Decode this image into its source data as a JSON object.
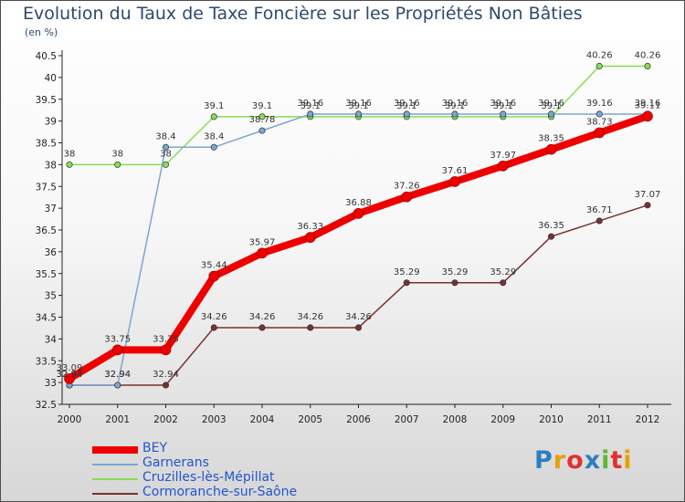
{
  "chart_data": {
    "type": "line",
    "title": "Evolution du Taux de Taxe Foncière sur les Propriétés Non Bâties",
    "subtitle": "(en %)",
    "xlabel": "",
    "ylabel": "",
    "ylim": [
      32.5,
      40.5
    ],
    "y_ticks": [
      "32.5",
      "33",
      "33.5",
      "34",
      "34.5",
      "35",
      "35.5",
      "36",
      "36.5",
      "37",
      "37.5",
      "38",
      "38.5",
      "39",
      "39.5",
      "40",
      "40.5"
    ],
    "categories": [
      "2000",
      "2001",
      "2002",
      "2003",
      "2004",
      "2005",
      "2006",
      "2007",
      "2008",
      "2009",
      "2010",
      "2011",
      "2012"
    ],
    "legend_position": "bottom-left",
    "series": [
      {
        "name": "BEY",
        "color": "#ee0000",
        "values": [
          33.09,
          33.75,
          33.75,
          35.44,
          35.97,
          36.33,
          36.88,
          37.26,
          37.61,
          37.97,
          38.35,
          38.73,
          39.11
        ],
        "labels": [
          "33.09",
          "33.75",
          "33.75",
          "35.44",
          "35.97",
          "36.33",
          "36.88",
          "37.26",
          "37.61",
          "37.97",
          "38.35",
          "38.73",
          "39.11"
        ]
      },
      {
        "name": "Garnerans",
        "color": "#7aa6d1",
        "values": [
          32.94,
          32.94,
          38.4,
          38.4,
          38.78,
          39.16,
          39.16,
          39.16,
          39.16,
          39.16,
          39.16,
          39.16,
          39.16
        ],
        "labels": [
          "32.94",
          "32.94",
          "38.4",
          "38.4",
          "38.78",
          "39.16",
          "39.16",
          "39.16",
          "39.16",
          "39.16",
          "39.16",
          "39.16",
          "39.16"
        ]
      },
      {
        "name": "Cruzilles-lès-Mépillat",
        "color": "#88dd55",
        "values": [
          38,
          38,
          38,
          39.1,
          39.1,
          39.1,
          39.1,
          39.1,
          39.1,
          39.1,
          39.1,
          40.26,
          40.26
        ],
        "labels": [
          "38",
          "38",
          "38",
          "39.1",
          "39.1",
          "39.1",
          "39.1",
          "39.1",
          "39.1",
          "39.1",
          "39.1",
          "40.26",
          "40.26"
        ]
      },
      {
        "name": "Cormoranche-sur-Saône",
        "color": "#7a3030",
        "values": [
          32.94,
          32.94,
          32.94,
          34.26,
          34.26,
          34.26,
          34.26,
          35.29,
          35.29,
          35.29,
          36.35,
          36.71,
          37.07
        ],
        "labels": [
          "32.94",
          "32.94",
          "32.94",
          "34.26",
          "34.26",
          "34.26",
          "34.26",
          "35.29",
          "35.29",
          "35.29",
          "36.35",
          "36.71",
          "37.07"
        ]
      }
    ]
  },
  "logo": {
    "letters": [
      "P",
      "r",
      "o",
      "x",
      "i",
      "t",
      "i"
    ],
    "colors": [
      "#2b7fc0",
      "#e8a000",
      "#e23030",
      "#2b7fc0",
      "#5cb82e",
      "#e23030",
      "#e8a000"
    ]
  }
}
